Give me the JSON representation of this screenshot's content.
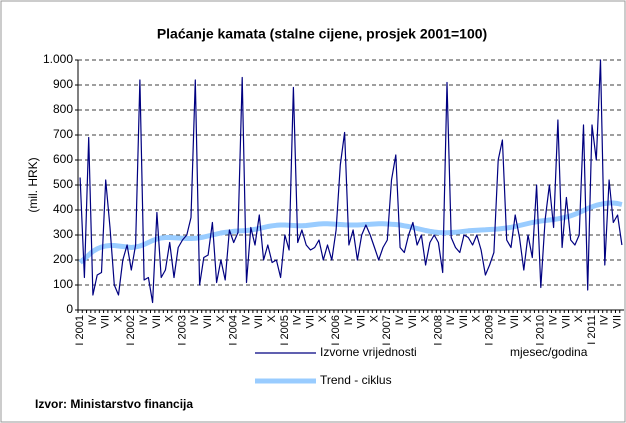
{
  "chart_data": {
    "type": "line",
    "title": "Plaćanje kamata (stalne cijene, prosjek 2001=100)",
    "y_label": "(mil. HRK)",
    "x_label": "mjesec/godina",
    "source": "Izvor: Ministarstvo financija",
    "categories": [
      "I 2001",
      null,
      null,
      "IV",
      null,
      null,
      "VII",
      null,
      null,
      "X",
      null,
      null,
      "I 2002",
      null,
      null,
      "IV",
      null,
      null,
      "VII",
      null,
      null,
      "X",
      null,
      null,
      "I 2003",
      null,
      null,
      "IV",
      null,
      null,
      "VII",
      null,
      null,
      "X",
      null,
      null,
      "I 2004",
      null,
      null,
      "IV",
      null,
      null,
      "VII",
      null,
      null,
      "X",
      null,
      null,
      "I 2005",
      null,
      null,
      "IV",
      null,
      null,
      "VII",
      null,
      null,
      "X",
      null,
      null,
      "I 2006",
      null,
      null,
      "IV",
      null,
      null,
      "VII",
      null,
      null,
      "X",
      null,
      null,
      "I 2007",
      null,
      null,
      "IV",
      null,
      null,
      "VII",
      null,
      null,
      "X",
      null,
      null,
      "I 2008",
      null,
      null,
      "IV",
      null,
      null,
      "VII",
      null,
      null,
      "X",
      null,
      null,
      "I 2009",
      null,
      null,
      "IV",
      null,
      null,
      "VII",
      null,
      null,
      "X",
      null,
      null,
      "I 2010",
      null,
      null,
      "IV",
      null,
      null,
      "VII",
      null,
      null,
      "X",
      null,
      null,
      "I 2011",
      null,
      null,
      "IV",
      null,
      null,
      "VII",
      null
    ],
    "series": [
      {
        "name": "Izvorne vrijednosti",
        "color": "#000080",
        "width": 1.2,
        "values": [
          530,
          130,
          690,
          60,
          140,
          150,
          520,
          330,
          100,
          60,
          200,
          260,
          160,
          260,
          920,
          120,
          130,
          30,
          390,
          130,
          160,
          270,
          130,
          250,
          280,
          300,
          370,
          920,
          100,
          210,
          220,
          350,
          110,
          200,
          120,
          320,
          270,
          310,
          930,
          110,
          330,
          260,
          380,
          200,
          260,
          190,
          200,
          130,
          300,
          240,
          890,
          270,
          320,
          260,
          240,
          250,
          280,
          200,
          260,
          200,
          320,
          580,
          710,
          260,
          320,
          200,
          300,
          340,
          300,
          250,
          200,
          250,
          280,
          520,
          620,
          250,
          230,
          300,
          350,
          260,
          300,
          180,
          270,
          300,
          270,
          150,
          910,
          290,
          250,
          230,
          300,
          290,
          260,
          300,
          240,
          140,
          180,
          230,
          600,
          680,
          280,
          250,
          380,
          290,
          160,
          300,
          210,
          500,
          90,
          360,
          500,
          330,
          760,
          250,
          450,
          280,
          260,
          300,
          740,
          80,
          740,
          600,
          1000,
          180,
          520,
          350,
          380,
          260
        ]
      },
      {
        "name": "Trend - ciklus",
        "color": "#99ccff",
        "width": 5,
        "values": [
          190,
          205,
          220,
          235,
          245,
          252,
          256,
          258,
          258,
          256,
          254,
          252,
          250,
          252,
          256,
          262,
          270,
          278,
          284,
          288,
          290,
          290,
          289,
          288,
          287,
          286,
          286,
          287,
          289,
          292,
          296,
          300,
          304,
          308,
          311,
          313,
          315,
          316,
          317,
          318,
          320,
          323,
          326,
          330,
          334,
          337,
          339,
          340,
          340,
          339,
          338,
          337,
          337,
          338,
          340,
          342,
          344,
          345,
          345,
          344,
          343,
          342,
          341,
          340,
          340,
          340,
          341,
          342,
          343,
          344,
          345,
          345,
          344,
          343,
          342,
          340,
          337,
          334,
          330,
          326,
          322,
          318,
          315,
          312,
          310,
          309,
          309,
          310,
          311,
          313,
          315,
          317,
          318,
          319,
          320,
          321,
          322,
          323,
          324,
          326,
          328,
          331,
          334,
          338,
          342,
          346,
          350,
          353,
          356,
          358,
          360,
          362,
          365,
          368,
          372,
          377,
          383,
          390,
          398,
          406,
          413,
          419,
          423,
          426,
          428,
          428,
          426,
          422
        ]
      }
    ],
    "ylim": [
      0,
      1000
    ],
    "yticks": [
      0,
      100,
      200,
      300,
      400,
      500,
      600,
      700,
      800,
      900,
      {
        "value": 1000,
        "label": "1.000"
      }
    ],
    "grid": true
  }
}
